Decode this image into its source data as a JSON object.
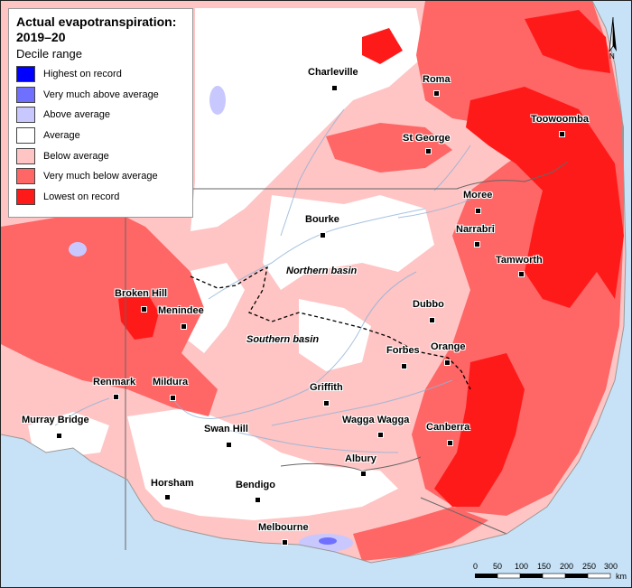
{
  "legend": {
    "title": "Actual evapotranspiration:\n2019–20",
    "subtitle": "Decile range",
    "items": [
      {
        "label": "Highest on record",
        "color": "#0000ff"
      },
      {
        "label": "Very much above average",
        "color": "#7070ff"
      },
      {
        "label": "Above average",
        "color": "#c8c8ff"
      },
      {
        "label": "Average",
        "color": "#ffffff"
      },
      {
        "label": "Below average",
        "color": "#ffc4c4"
      },
      {
        "label": "Very much below average",
        "color": "#ff6666"
      },
      {
        "label": "Lowest on record",
        "color": "#ff1a1a"
      }
    ]
  },
  "cities": [
    {
      "name": "Charleville"
    },
    {
      "name": "Roma"
    },
    {
      "name": "Toowoomba"
    },
    {
      "name": "St George"
    },
    {
      "name": "Moree"
    },
    {
      "name": "Bourke"
    },
    {
      "name": "Narrabri"
    },
    {
      "name": "Tamworth"
    },
    {
      "name": "Broken Hill"
    },
    {
      "name": "Menindee"
    },
    {
      "name": "Dubbo"
    },
    {
      "name": "Orange"
    },
    {
      "name": "Forbes"
    },
    {
      "name": "Renmark"
    },
    {
      "name": "Mildura"
    },
    {
      "name": "Griffith"
    },
    {
      "name": "Murray Bridge"
    },
    {
      "name": "Swan Hill"
    },
    {
      "name": "Wagga Wagga"
    },
    {
      "name": "Canberra"
    },
    {
      "name": "Albury"
    },
    {
      "name": "Horsham"
    },
    {
      "name": "Bendigo"
    },
    {
      "name": "Melbourne"
    }
  ],
  "basins": {
    "northern": "Northern basin",
    "southern": "Southern basin"
  },
  "scale": {
    "ticks": [
      "0",
      "50",
      "100",
      "150",
      "200",
      "250",
      "300"
    ],
    "unit": "km"
  },
  "north_label": "N"
}
